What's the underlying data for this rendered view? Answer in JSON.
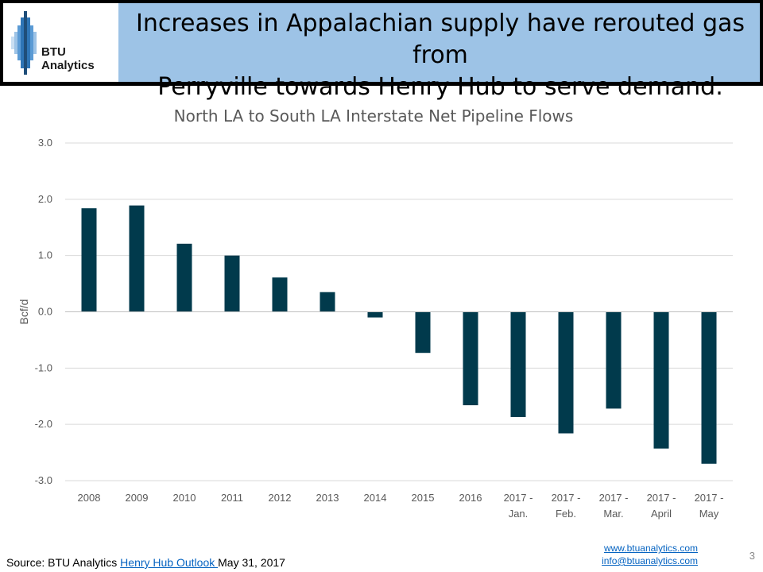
{
  "header": {
    "logo_text": "BTU Analytics",
    "headline_line1": "Increases in Appalachian supply have rerouted gas from",
    "headline_line2": "Perryville towards Henry Hub to serve demand."
  },
  "chart_data": {
    "type": "bar",
    "title": "North LA to South LA Interstate Net Pipeline Flows",
    "xlabel": "",
    "ylabel": "Bcf/d",
    "ylim": [
      -3.0,
      3.0
    ],
    "yticks": [
      "3.0",
      "2.0",
      "1.0",
      "0.0",
      "-1.0",
      "-2.0",
      "-3.0"
    ],
    "grid": true,
    "bar_color": "#013a4c",
    "categories": [
      [
        "2008"
      ],
      [
        "2009"
      ],
      [
        "2010"
      ],
      [
        "2011"
      ],
      [
        "2012"
      ],
      [
        "2013"
      ],
      [
        "2014"
      ],
      [
        "2015"
      ],
      [
        "2016"
      ],
      [
        "2017 -",
        "Jan."
      ],
      [
        "2017 -",
        "Feb."
      ],
      [
        "2017 -",
        "Mar."
      ],
      [
        "2017 -",
        "April"
      ],
      [
        "2017 -",
        "May"
      ]
    ],
    "values": [
      1.84,
      1.89,
      1.21,
      1.0,
      0.61,
      0.35,
      -0.1,
      -0.73,
      -1.66,
      -1.87,
      -2.16,
      -1.72,
      -2.43,
      -2.7
    ]
  },
  "footer": {
    "source_prefix": "Source: BTU Analytics ",
    "source_link": "Henry Hub Outlook ",
    "source_suffix": "May 31, 2017",
    "website": "www.btuanalytics.com",
    "email": "info@btuanalytics.com",
    "page_number": "3"
  }
}
